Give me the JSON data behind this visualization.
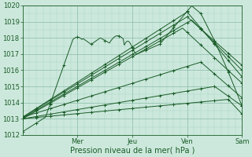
{
  "title": "",
  "xlabel": "Pression niveau de la mer( hPa )",
  "ylim": [
    1012,
    1020
  ],
  "xlim": [
    0,
    96
  ],
  "yticks": [
    1012,
    1013,
    1014,
    1015,
    1016,
    1017,
    1018,
    1019,
    1020
  ],
  "xtick_positions": [
    24,
    48,
    72,
    96
  ],
  "xtick_labels": [
    "Mer",
    "Jeu",
    "Ven",
    "Sam"
  ],
  "bg_color": "#cce8dc",
  "grid_color_minor": "#aad4c4",
  "grid_color_major": "#88bba8",
  "line_color": "#1a5c28",
  "tick_fontsize": 6,
  "xlabel_fontsize": 7
}
